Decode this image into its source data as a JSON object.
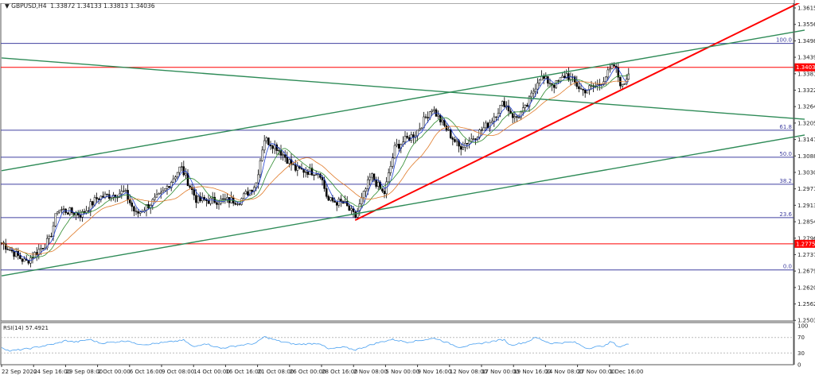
{
  "header": {
    "symbol": "GBPUSD,H4",
    "ohlc": "1.33872 1.34133 1.33813 1.34036"
  },
  "rsi": {
    "label": "RSI(14) 57.4921",
    "levels": [
      100,
      70,
      30,
      0
    ]
  },
  "colors": {
    "candle": "#000000",
    "up_fill": "#ffffff",
    "red_line": "#ff0000",
    "green_line": "#2e8b57",
    "fib": "#4040a0",
    "ma_fast": "#1f3fd0",
    "ma_mid": "#2e8b2e",
    "ma_slow": "#e07b2a",
    "rsi": "#4aa0f0",
    "price_tag": "#ff0000"
  },
  "chart_data": {
    "type": "candlestick",
    "symbol": "GBPUSD",
    "timeframe": "H4",
    "y_ticks": [
      "1.36150",
      "1.35565",
      "1.34980",
      "1.34395",
      "1.33810",
      "1.33225",
      "1.32640",
      "1.32055",
      "1.31470",
      "1.30885",
      "1.30300",
      "1.29715",
      "1.29130",
      "1.28545",
      "1.27960",
      "1.27375",
      "1.26790",
      "1.26205",
      "1.25620",
      "1.25035"
    ],
    "ylim": [
      1.25035,
      1.3615
    ],
    "x_ticks": [
      "22 Sep 2020",
      "24 Sep 16:00",
      "29 Sep 08:00",
      "2 Oct 00:00",
      "6 Oct 16:00",
      "9 Oct 08:00",
      "14 Oct 00:00",
      "16 Oct 16:00",
      "21 Oct 08:00",
      "26 Oct 00:00",
      "28 Oct 16:00",
      "2 Nov 08:00",
      "5 Nov 00:00",
      "9 Nov 16:00",
      "12 Nov 08:00",
      "17 Nov 00:00",
      "19 Nov 16:00",
      "24 Nov 08:00",
      "27 Nov 00:00",
      "1 Dec 16:00"
    ],
    "price_path_note_units": "x in axis-label index, y in price",
    "price_path": [
      [
        0,
        1.278
      ],
      [
        0.75,
        1.271
      ],
      [
        1.5,
        1.279
      ],
      [
        1.75,
        1.29
      ],
      [
        2.5,
        1.288
      ],
      [
        3,
        1.294
      ],
      [
        3.85,
        1.296
      ],
      [
        4.2,
        1.288
      ],
      [
        5,
        1.295
      ],
      [
        5.6,
        1.305
      ],
      [
        6.1,
        1.293
      ],
      [
        6.7,
        1.293
      ],
      [
        7.45,
        1.293
      ],
      [
        7.95,
        1.299
      ],
      [
        8.2,
        1.315
      ],
      [
        8.6,
        1.312
      ],
      [
        9.2,
        1.304
      ],
      [
        9.95,
        1.303
      ],
      [
        10.2,
        1.293
      ],
      [
        10.7,
        1.292
      ],
      [
        11.05,
        1.287
      ],
      [
        11.55,
        1.302
      ],
      [
        11.95,
        1.295
      ],
      [
        12.3,
        1.312
      ],
      [
        12.95,
        1.317
      ],
      [
        13.45,
        1.326
      ],
      [
        13.8,
        1.32
      ],
      [
        14.3,
        1.312
      ],
      [
        14.7,
        1.315
      ],
      [
        15.2,
        1.32
      ],
      [
        15.7,
        1.328
      ],
      [
        16.05,
        1.322
      ],
      [
        16.4,
        1.326
      ],
      [
        16.8,
        1.337
      ],
      [
        17.3,
        1.334
      ],
      [
        17.65,
        1.338
      ],
      [
        18.15,
        1.332
      ],
      [
        18.65,
        1.334
      ],
      [
        19.15,
        1.341
      ],
      [
        19.4,
        1.333
      ],
      [
        19.65,
        1.34036
      ]
    ],
    "current_price": "1.34038",
    "horizontal_lines": [
      {
        "price": 1.34038,
        "label": "1.34038",
        "color": "red"
      },
      {
        "price": 1.27759,
        "label": "1.27759",
        "color": "red"
      }
    ],
    "fibonacci": [
      {
        "level": "100.0",
        "price": 1.3489
      },
      {
        "level": "61.8",
        "price": 1.318
      },
      {
        "level": "50.0",
        "price": 1.3084
      },
      {
        "level": "38.2",
        "price": 1.2988
      },
      {
        "level": "23.6",
        "price": 1.2869
      },
      {
        "level": "0.0",
        "price": 1.2683
      }
    ],
    "trendlines": [
      {
        "color": "red",
        "from": [
          11.05,
          1.286
        ],
        "to": [
          25.1,
          1.3643
        ]
      },
      {
        "color": "green",
        "from": [
          0,
          1.3036
        ],
        "to": [
          25.1,
          1.3536
        ]
      },
      {
        "color": "green",
        "from": [
          0,
          1.3437
        ],
        "to": [
          25.1,
          1.3219
        ]
      },
      {
        "color": "green",
        "from": [
          0,
          1.2662
        ],
        "to": [
          25.1,
          1.3163
        ]
      }
    ],
    "rsi_path": [
      [
        0,
        45
      ],
      [
        0.25,
        35
      ],
      [
        0.9,
        42
      ],
      [
        1.75,
        55
      ],
      [
        2,
        62
      ],
      [
        2.3,
        58
      ],
      [
        2.75,
        65
      ],
      [
        3.1,
        55
      ],
      [
        4,
        62
      ],
      [
        4.1,
        55
      ],
      [
        4.5,
        52
      ],
      [
        5.2,
        58
      ],
      [
        5.7,
        63
      ],
      [
        6,
        45
      ],
      [
        6.35,
        55
      ],
      [
        6.85,
        42
      ],
      [
        7.45,
        50
      ],
      [
        7.95,
        55
      ],
      [
        8.2,
        72
      ],
      [
        8.7,
        60
      ],
      [
        9.2,
        52
      ],
      [
        9.95,
        55
      ],
      [
        10.2,
        40
      ],
      [
        10.7,
        45
      ],
      [
        11.05,
        38
      ],
      [
        11.7,
        55
      ],
      [
        12.2,
        65
      ],
      [
        12.7,
        58
      ],
      [
        13.55,
        68
      ],
      [
        14.3,
        45
      ],
      [
        15.2,
        58
      ],
      [
        15.7,
        65
      ],
      [
        15.9,
        50
      ],
      [
        16.4,
        58
      ],
      [
        16.7,
        70
      ],
      [
        17.15,
        55
      ],
      [
        17.9,
        58
      ],
      [
        18.3,
        42
      ],
      [
        18.9,
        50
      ],
      [
        19.05,
        60
      ],
      [
        19.3,
        45
      ],
      [
        19.65,
        55
      ]
    ]
  }
}
